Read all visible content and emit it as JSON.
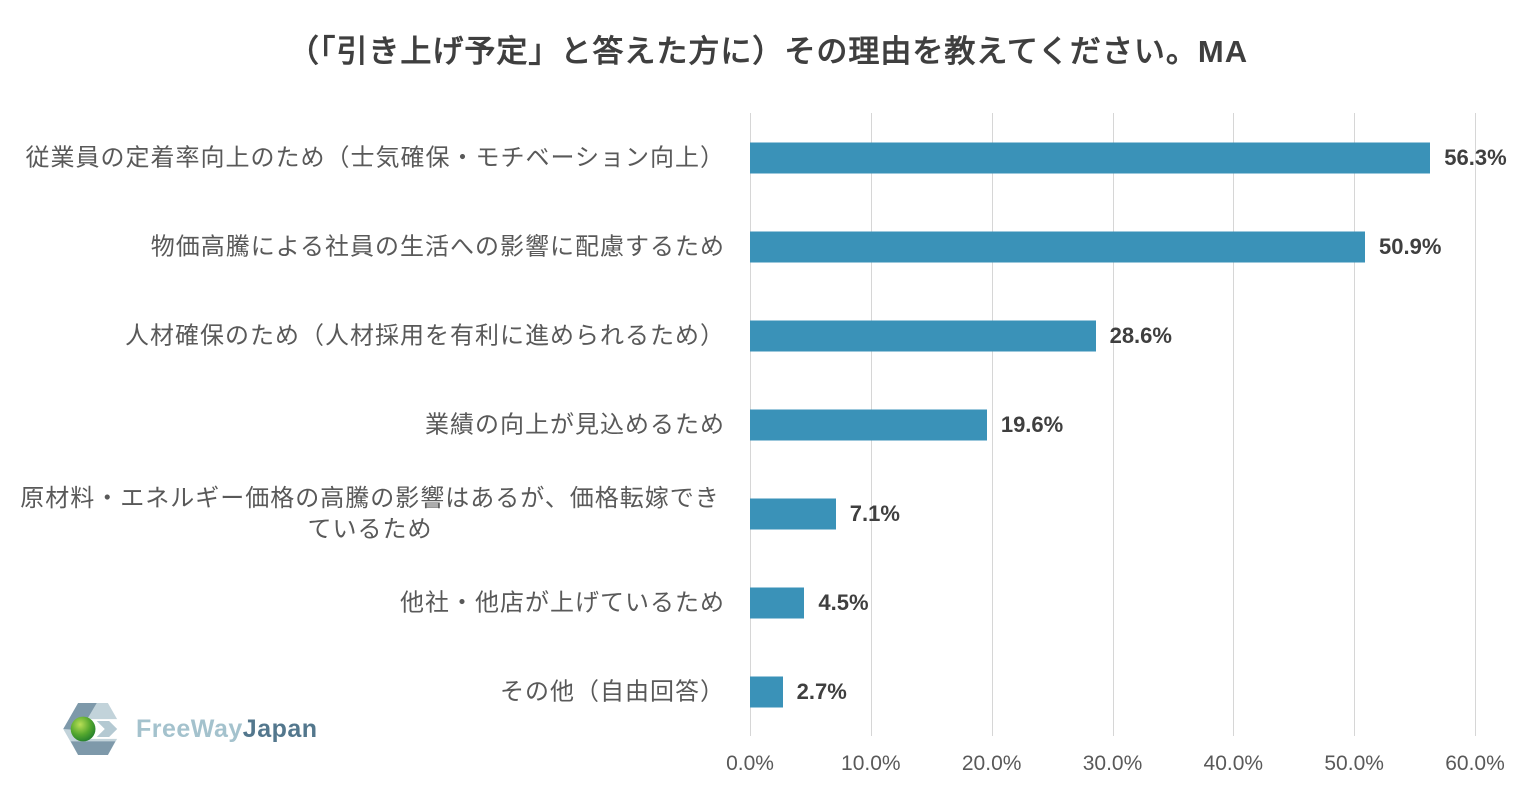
{
  "chart_data": {
    "type": "bar",
    "orientation": "horizontal",
    "title": "（「引き上げ予定」と答えた方に）その理由を教えてください。MA",
    "categories": [
      "従業員の定着率向上のため（士気確保・モチベーション向上）",
      "物価高騰による社員の生活への影響に配慮するため",
      "人材確保のため（人材採用を有利に進められるため）",
      "業績の向上が見込めるため",
      "原材料・エネルギー価格の高騰の影響はあるが、価格転嫁できているため",
      "他社・他店が上げているため",
      "その他（自由回答）"
    ],
    "values": [
      56.3,
      50.9,
      28.6,
      19.6,
      7.1,
      4.5,
      2.7
    ],
    "value_labels": [
      "56.3%",
      "50.9%",
      "28.6%",
      "19.6%",
      "7.1%",
      "4.5%",
      "2.7%"
    ],
    "xlabel": "",
    "ylabel": "",
    "xlim": [
      0,
      60
    ],
    "x_ticks": [
      "0.0%",
      "10.0%",
      "20.0%",
      "30.0%",
      "40.0%",
      "50.0%",
      "60.0%"
    ],
    "grid": true,
    "legend": false,
    "bar_color": "#3a92b8",
    "gridline_color": "#d6d6d6",
    "value_label_color": "#3f3f3f",
    "category_label_color": "#595959"
  },
  "logo": {
    "text_light": "FreeWay",
    "text_dark": "Japan",
    "color_light": "#a4c2cd",
    "color_dark": "#53778d"
  }
}
